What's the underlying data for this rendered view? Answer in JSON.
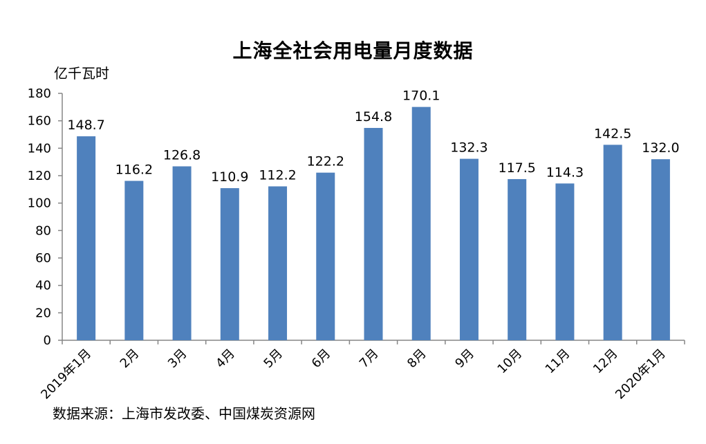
{
  "chart_data": {
    "type": "bar",
    "title": "上海全社会用电量月度数据",
    "ylabel": "亿千瓦时",
    "xlabel": "",
    "categories": [
      "2019年1月",
      "2月",
      "3月",
      "4月",
      "5月",
      "6月",
      "7月",
      "8月",
      "9月",
      "10月",
      "11月",
      "12月",
      "2020年1月"
    ],
    "values": [
      148.7,
      116.2,
      126.8,
      110.9,
      112.2,
      122.2,
      154.8,
      170.1,
      132.3,
      117.5,
      114.3,
      142.5,
      132.0
    ],
    "data_labels": [
      "148.7",
      "116.2",
      "126.8",
      "110.9",
      "112.2",
      "122.2",
      "154.8",
      "170.1",
      "132.3",
      "117.5",
      "114.3",
      "142.5",
      "132.0"
    ],
    "ylim": [
      0,
      180
    ],
    "yticks": [
      0,
      20,
      40,
      60,
      80,
      100,
      120,
      140,
      160,
      180
    ],
    "grid": false,
    "legend": "none",
    "bar_color": "#4f81bd",
    "source": "数据来源：上海市发改委、中国煤炭资源网"
  }
}
